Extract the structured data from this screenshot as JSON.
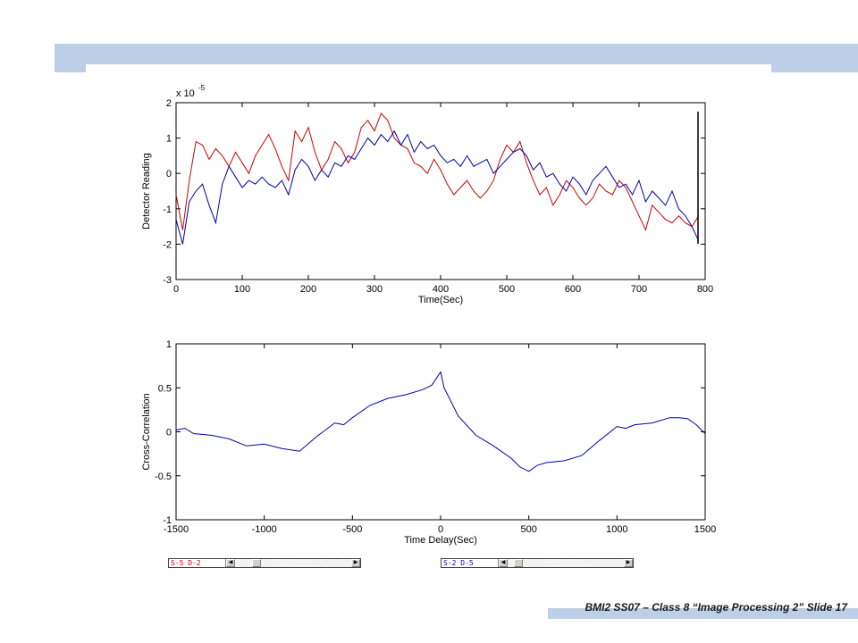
{
  "slide": {
    "footer": "BMI2 SS07 – Class 8 “Image Processing 2” Slide 17",
    "accent_color": "#bdcfe6"
  },
  "scrollbars": [
    {
      "label": "S-5  D-2",
      "label_color": "#cc0000",
      "thumb_fraction": 0.16
    },
    {
      "label": "S-2  D-5",
      "label_color": "#0000aa",
      "thumb_fraction": 0.06
    }
  ],
  "chart_data": [
    {
      "type": "line",
      "title": "",
      "xlabel": "Time(Sec)",
      "ylabel": "Detector Reading",
      "exponent_label": "x 10",
      "exponent": "-5",
      "xlim": [
        0,
        800
      ],
      "ylim": [
        -3,
        2
      ],
      "xticks": [
        "0",
        "100",
        "200",
        "300",
        "400",
        "500",
        "600",
        "700",
        "800"
      ],
      "yticks": [
        "-3",
        "-2",
        "-1",
        "0",
        "1",
        "2"
      ],
      "grid": false,
      "series": [
        {
          "color": "#cc0000",
          "x": [
            0,
            10,
            20,
            30,
            40,
            50,
            60,
            70,
            80,
            90,
            100,
            110,
            120,
            130,
            140,
            150,
            160,
            170,
            180,
            190,
            200,
            210,
            220,
            230,
            240,
            250,
            260,
            270,
            280,
            290,
            300,
            310,
            320,
            330,
            340,
            350,
            360,
            370,
            380,
            390,
            400,
            410,
            420,
            430,
            440,
            450,
            460,
            470,
            480,
            490,
            500,
            510,
            520,
            530,
            540,
            550,
            560,
            570,
            580,
            590,
            600,
            610,
            620,
            630,
            640,
            650,
            660,
            670,
            680,
            690,
            700,
            710,
            720,
            730,
            740,
            750,
            760,
            770,
            780,
            790
          ],
          "y": [
            -0.6,
            -1.6,
            -0.2,
            0.9,
            0.8,
            0.4,
            0.7,
            0.5,
            0.2,
            0.6,
            0.3,
            0.0,
            0.5,
            0.8,
            1.1,
            0.7,
            0.2,
            -0.2,
            1.2,
            0.9,
            1.3,
            0.6,
            0.1,
            0.4,
            0.9,
            0.7,
            0.3,
            0.6,
            1.3,
            1.5,
            1.2,
            1.7,
            1.5,
            1.0,
            0.8,
            0.7,
            0.3,
            0.2,
            0.0,
            0.4,
            0.1,
            -0.3,
            -0.6,
            -0.4,
            -0.2,
            -0.5,
            -0.7,
            -0.5,
            -0.2,
            0.4,
            0.8,
            0.6,
            0.9,
            0.3,
            -0.2,
            -0.6,
            -0.4,
            -0.9,
            -0.6,
            -0.2,
            -0.4,
            -0.7,
            -0.9,
            -0.7,
            -0.3,
            -0.5,
            -0.6,
            -0.2,
            -0.4,
            -0.8,
            -1.2,
            -1.6,
            -0.9,
            -1.1,
            -1.3,
            -1.4,
            -1.2,
            -1.4,
            -1.5,
            -1.2
          ]
        },
        {
          "color": "#0000aa",
          "x": [
            0,
            10,
            20,
            30,
            40,
            50,
            60,
            70,
            80,
            90,
            100,
            110,
            120,
            130,
            140,
            150,
            160,
            170,
            180,
            190,
            200,
            210,
            220,
            230,
            240,
            250,
            260,
            270,
            280,
            290,
            300,
            310,
            320,
            330,
            340,
            350,
            360,
            370,
            380,
            390,
            400,
            410,
            420,
            430,
            440,
            450,
            460,
            470,
            480,
            490,
            500,
            510,
            520,
            530,
            540,
            550,
            560,
            570,
            580,
            590,
            600,
            610,
            620,
            630,
            640,
            650,
            660,
            670,
            680,
            690,
            700,
            710,
            720,
            730,
            740,
            750,
            760,
            770,
            780,
            790
          ],
          "y": [
            -1.3,
            -2.0,
            -0.8,
            -0.5,
            -0.3,
            -0.9,
            -1.4,
            -0.3,
            0.2,
            -0.1,
            -0.4,
            -0.2,
            -0.3,
            -0.1,
            -0.3,
            -0.4,
            -0.2,
            -0.6,
            0.1,
            0.4,
            0.2,
            -0.2,
            0.1,
            -0.1,
            0.3,
            0.2,
            0.5,
            0.4,
            0.7,
            1.0,
            0.8,
            1.1,
            0.9,
            1.2,
            0.8,
            1.1,
            0.6,
            0.9,
            0.7,
            0.8,
            0.5,
            0.3,
            0.4,
            0.2,
            0.5,
            0.2,
            0.3,
            0.4,
            0.0,
            0.2,
            0.4,
            0.6,
            0.7,
            0.5,
            0.1,
            0.3,
            -0.1,
            0.0,
            -0.3,
            -0.5,
            -0.1,
            -0.3,
            -0.6,
            -0.2,
            0.0,
            0.2,
            -0.1,
            -0.4,
            -0.3,
            -0.6,
            -0.2,
            -0.8,
            -0.5,
            -0.7,
            -0.9,
            -0.5,
            -1.0,
            -1.2,
            -1.5,
            -1.9
          ]
        }
      ]
    },
    {
      "type": "line",
      "title": "",
      "xlabel": "Time Delay(Sec)",
      "ylabel": "Cross-Correlation",
      "xlim": [
        -1500,
        1500
      ],
      "ylim": [
        -1,
        1
      ],
      "xticks": [
        "-1500",
        "-1000",
        "-500",
        "0",
        "500",
        "1000",
        "1500"
      ],
      "yticks": [
        "-1",
        "-0.5",
        "0",
        "0.5",
        "1"
      ],
      "grid": false,
      "series": [
        {
          "color": "#0000aa",
          "x": [
            -1500,
            -1450,
            -1400,
            -1300,
            -1200,
            -1100,
            -1000,
            -900,
            -800,
            -700,
            -600,
            -550,
            -500,
            -400,
            -300,
            -200,
            -100,
            -50,
            0,
            20,
            50,
            100,
            200,
            300,
            400,
            450,
            500,
            550,
            600,
            700,
            800,
            900,
            1000,
            1050,
            1100,
            1200,
            1300,
            1350,
            1400,
            1450,
            1500
          ],
          "y": [
            0.02,
            0.04,
            -0.02,
            -0.04,
            -0.08,
            -0.16,
            -0.14,
            -0.19,
            -0.22,
            -0.05,
            0.1,
            0.08,
            0.16,
            0.3,
            0.38,
            0.42,
            0.48,
            0.53,
            0.68,
            0.5,
            0.38,
            0.18,
            -0.04,
            -0.16,
            -0.3,
            -0.4,
            -0.45,
            -0.38,
            -0.35,
            -0.33,
            -0.27,
            -0.1,
            0.06,
            0.04,
            0.08,
            0.1,
            0.16,
            0.16,
            0.15,
            0.08,
            -0.02
          ]
        }
      ]
    }
  ]
}
